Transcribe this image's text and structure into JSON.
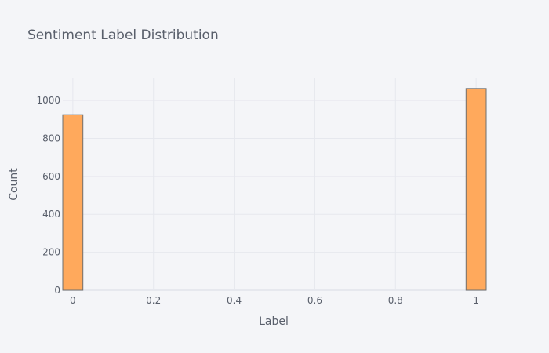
{
  "chart_data": {
    "type": "bar",
    "title": "Sentiment Label Distribution",
    "xlabel": "Label",
    "ylabel": "Count",
    "xlim": [
      -0.025,
      1.025
    ],
    "ylim": [
      0,
      1116
    ],
    "xticks": [
      0,
      0.2,
      0.4,
      0.6,
      0.8,
      1
    ],
    "xtick_labels": [
      "0",
      "0.2",
      "0.4",
      "0.6",
      "0.8",
      "1"
    ],
    "yticks": [
      0,
      200,
      400,
      600,
      800,
      1000
    ],
    "ytick_labels": [
      "0",
      "200",
      "400",
      "600",
      "800",
      "1000"
    ],
    "bins": [
      {
        "x0": -0.025,
        "x1": 0.025,
        "value": 925
      },
      {
        "x0": 0.975,
        "x1": 1.025,
        "value": 1063
      }
    ],
    "bar_color": "#ffa95c",
    "bar_outline": "#6e6e6e",
    "grid": true
  }
}
